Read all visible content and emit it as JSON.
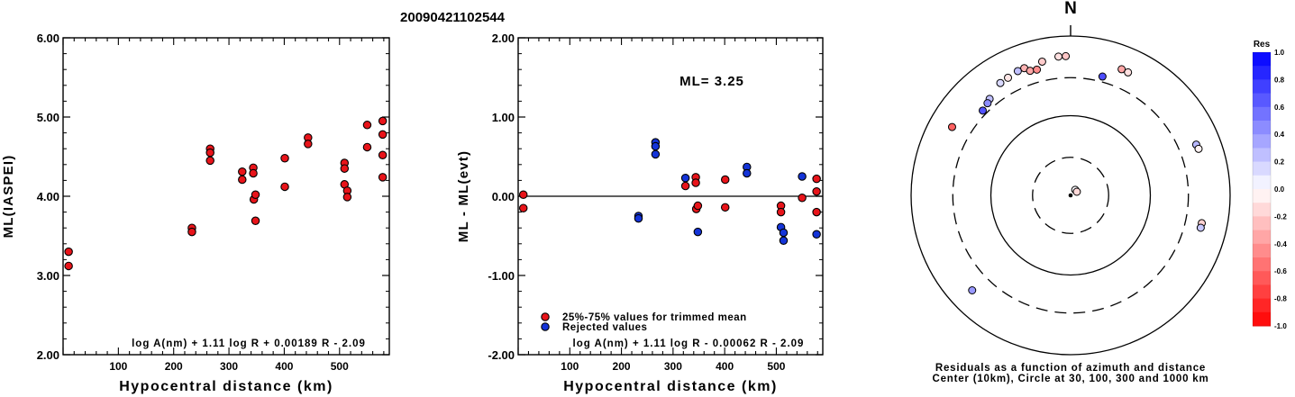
{
  "page_title": "20090421102544",
  "chart_data": [
    {
      "type": "scatter",
      "ylabel": "ML(IASPEI)",
      "xlabel": "Hypocentral distance (km)",
      "xlim": [
        0,
        590
      ],
      "ylim": [
        2.0,
        6.0
      ],
      "x_ticks": [
        "100",
        "200",
        "300",
        "400",
        "500"
      ],
      "x_tick_values": [
        100,
        200,
        300,
        400,
        500
      ],
      "y_ticks": [
        "2.00",
        "3.00",
        "4.00",
        "5.00",
        "6.00"
      ],
      "y_tick_values": [
        2,
        3,
        4,
        5,
        6
      ],
      "formula": "log A(nm) + 1.11 log R + 0.00189 R - 2.09",
      "point_color": "#e8141a",
      "points": [
        [
          10,
          3.3
        ],
        [
          10,
          3.12
        ],
        [
          233,
          3.6
        ],
        [
          233,
          3.55
        ],
        [
          266,
          4.6
        ],
        [
          266,
          4.55
        ],
        [
          266,
          4.45
        ],
        [
          324,
          4.31
        ],
        [
          324,
          4.21
        ],
        [
          344,
          4.36
        ],
        [
          344,
          4.29
        ],
        [
          345,
          3.96
        ],
        [
          348,
          4.02
        ],
        [
          348,
          3.69
        ],
        [
          401,
          4.48
        ],
        [
          401,
          4.12
        ],
        [
          443,
          4.74
        ],
        [
          443,
          4.66
        ],
        [
          509,
          4.42
        ],
        [
          509,
          4.35
        ],
        [
          509,
          4.15
        ],
        [
          514,
          4.07
        ],
        [
          514,
          3.99
        ],
        [
          550,
          4.9
        ],
        [
          550,
          4.62
        ],
        [
          578,
          4.95
        ],
        [
          578,
          4.78
        ],
        [
          578,
          4.52
        ],
        [
          578,
          4.24
        ]
      ]
    },
    {
      "type": "scatter",
      "ylabel": "ML - ML(evt)",
      "xlabel": "Hypocentral distance (km)",
      "xlim": [
        0,
        590
      ],
      "ylim": [
        -2.0,
        2.0
      ],
      "x_ticks": [
        "100",
        "200",
        "300",
        "400",
        "500"
      ],
      "x_tick_values": [
        100,
        200,
        300,
        400,
        500
      ],
      "y_ticks": [
        "-2.00",
        "-1.00",
        "0.00",
        "1.00",
        "2.00"
      ],
      "y_tick_values": [
        -2,
        -1,
        0,
        1,
        2
      ],
      "annotation": "ML= 3.25",
      "formula": "log A(nm) + 1.11 log R - 0.00062 R - 2.09",
      "legend": [
        {
          "label": "25%-75% values for trimmed mean",
          "color": "#e8141a"
        },
        {
          "label": "Rejected values",
          "color": "#1434d8"
        }
      ],
      "series": [
        {
          "name": "25%-75% values for trimmed mean",
          "color": "#e8141a",
          "points": [
            [
              10,
              0.02
            ],
            [
              10,
              -0.15
            ],
            [
              324,
              0.13
            ],
            [
              344,
              0.24
            ],
            [
              344,
              0.17
            ],
            [
              345,
              -0.16
            ],
            [
              348,
              -0.12
            ],
            [
              401,
              0.21
            ],
            [
              401,
              -0.14
            ],
            [
              509,
              -0.12
            ],
            [
              509,
              -0.2
            ],
            [
              550,
              -0.02
            ],
            [
              578,
              0.22
            ],
            [
              578,
              0.06
            ],
            [
              578,
              -0.2
            ]
          ]
        },
        {
          "name": "Rejected values",
          "color": "#1434d8",
          "points": [
            [
              233,
              -0.25
            ],
            [
              233,
              -0.28
            ],
            [
              266,
              0.68
            ],
            [
              266,
              0.63
            ],
            [
              266,
              0.53
            ],
            [
              324,
              0.23
            ],
            [
              348,
              -0.45
            ],
            [
              443,
              0.37
            ],
            [
              443,
              0.29
            ],
            [
              509,
              -0.39
            ],
            [
              514,
              -0.46
            ],
            [
              514,
              -0.56
            ],
            [
              550,
              0.25
            ],
            [
              578,
              -0.48
            ]
          ]
        }
      ]
    },
    {
      "type": "scatter",
      "north_label": "N",
      "caption_line1": "Residuals as a function of azimuth and distance",
      "caption_line2": "Center (10km), Circle at 30, 100, 300 and 1000 km",
      "colorbar_title": "Res",
      "colorbar_ticks": [
        "1.0",
        "0.8",
        "0.6",
        "0.4",
        "0.2",
        "0.0",
        "-0.2",
        "-0.4",
        "-0.6",
        "-0.8",
        "-1.0"
      ],
      "colorbar_tick_values": [
        1.0,
        0.8,
        0.6,
        0.4,
        0.2,
        0.0,
        -0.2,
        -0.4,
        -0.6,
        -0.8,
        -1.0
      ],
      "distance_circles_km": [
        30,
        100,
        300,
        1000
      ],
      "stations": [
        {
          "dist": 10,
          "az": 40,
          "res": 0.02
        },
        {
          "dist": 10,
          "az": 60,
          "res": -0.15
        },
        {
          "dist": 560,
          "az": 355,
          "res": -0.12
        },
        {
          "dist": 560,
          "az": 358,
          "res": -0.22
        },
        {
          "dist": 520,
          "az": 348,
          "res": -0.2
        },
        {
          "dist": 500,
          "az": 340,
          "res": -0.3
        },
        {
          "dist": 495,
          "az": 337,
          "res": 0.25
        },
        {
          "dist": 470,
          "az": 332,
          "res": -0.1
        },
        {
          "dist": 460,
          "az": 328,
          "res": 0.15
        },
        {
          "dist": 440,
          "az": 342,
          "res": -0.35
        },
        {
          "dist": 430,
          "az": 345,
          "res": -0.45
        },
        {
          "dist": 380,
          "az": 320,
          "res": 0.25
        },
        {
          "dist": 360,
          "az": 318,
          "res": 0.45
        },
        {
          "dist": 340,
          "az": 314,
          "res": 0.68
        },
        {
          "dist": 520,
          "az": 300,
          "res": -0.62
        },
        {
          "dist": 520,
          "az": 226,
          "res": 0.4
        },
        {
          "dist": 350,
          "az": 15,
          "res": 0.7
        },
        {
          "dist": 510,
          "az": 22,
          "res": -0.35
        },
        {
          "dist": 505,
          "az": 25,
          "res": -0.12
        },
        {
          "dist": 500,
          "az": 68,
          "res": 0.28
        },
        {
          "dist": 510,
          "az": 70,
          "res": -0.05
        },
        {
          "dist": 480,
          "az": 102,
          "res": -0.18
        },
        {
          "dist": 480,
          "az": 104,
          "res": 0.22
        }
      ]
    }
  ]
}
